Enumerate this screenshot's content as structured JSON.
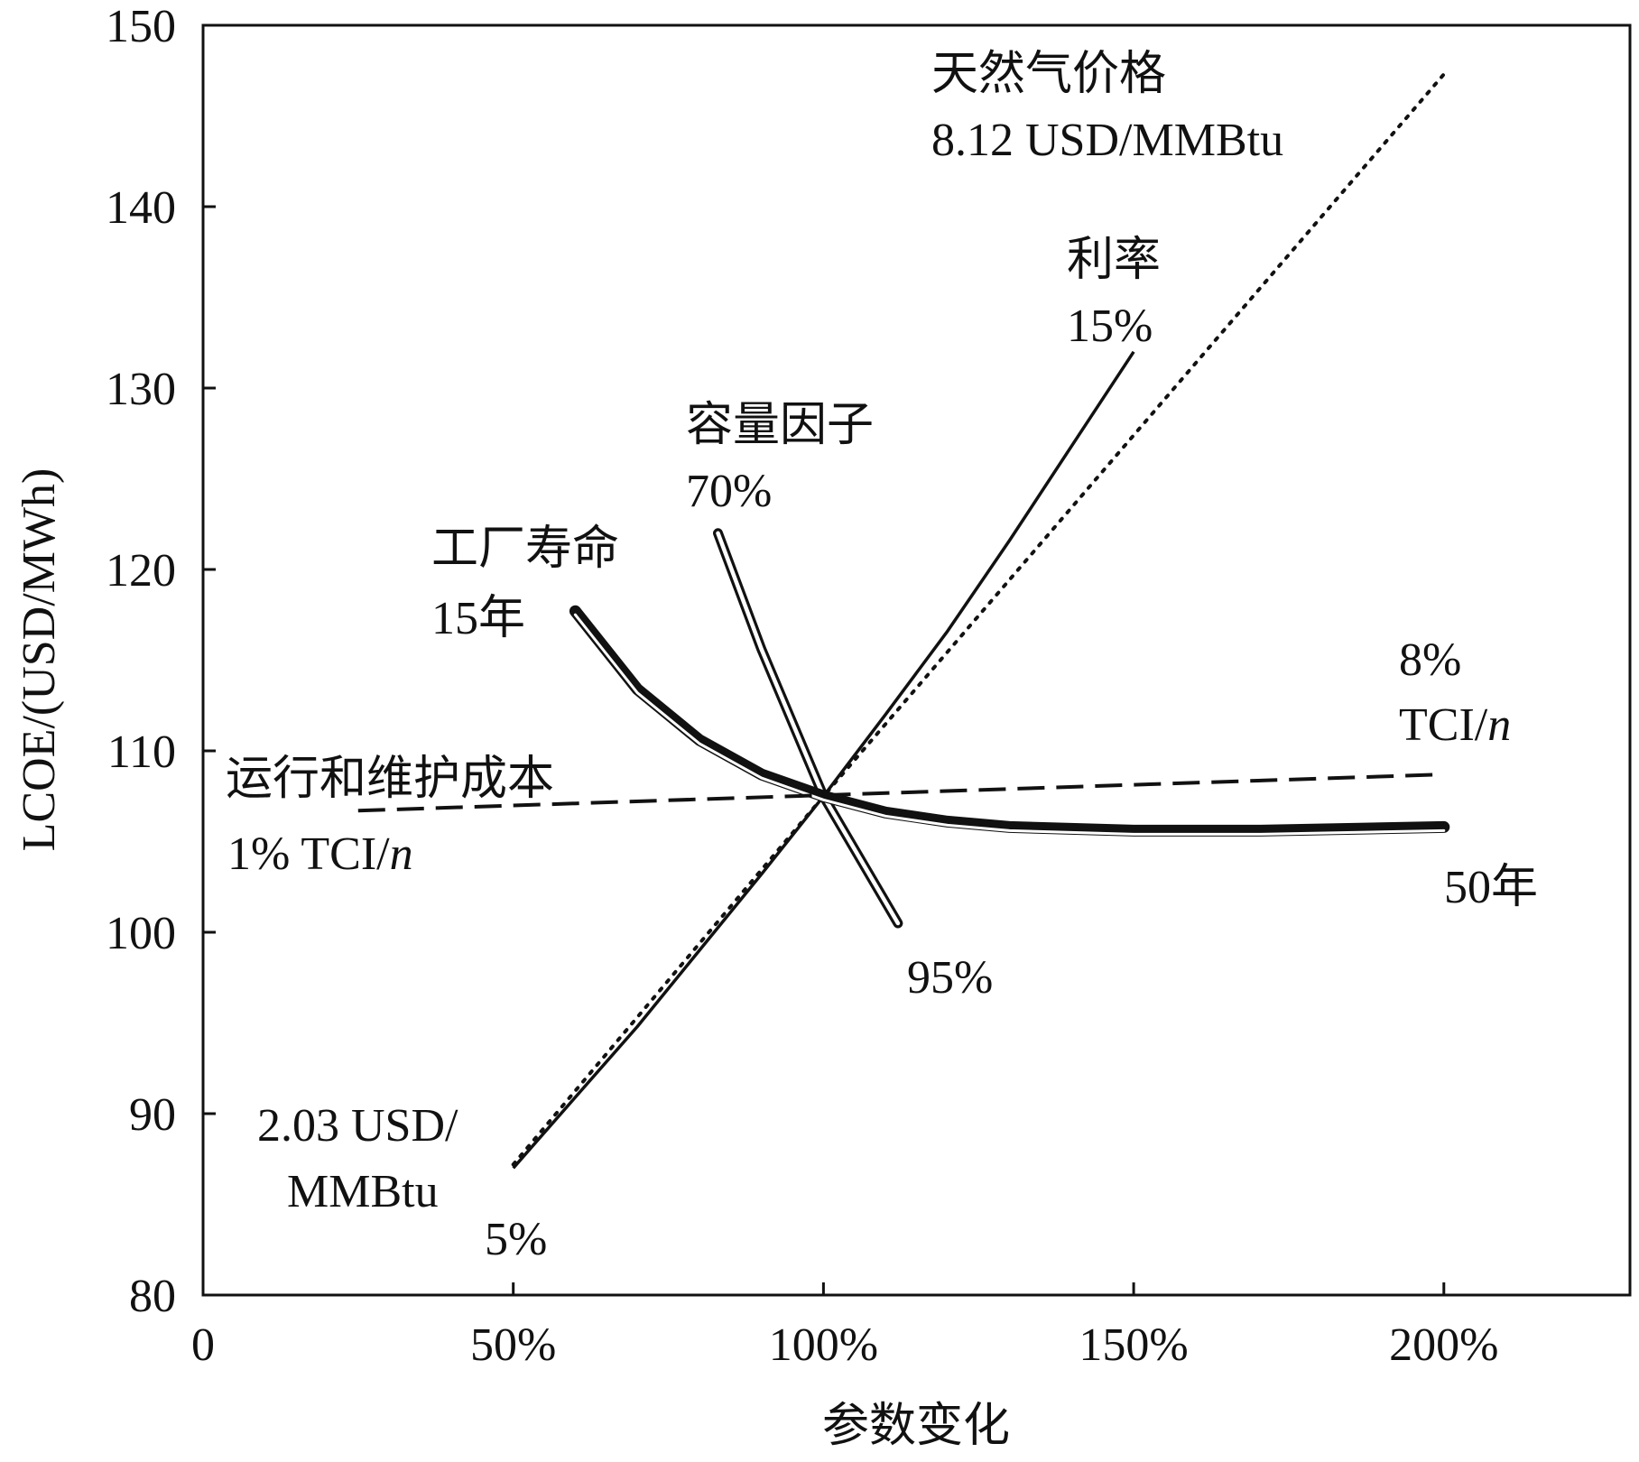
{
  "chart_data": {
    "type": "line",
    "title": "",
    "xlabel": "参数变化",
    "ylabel": "LCOE/(USD/MWh)",
    "xlim": [
      0,
      230
    ],
    "ylim": [
      80,
      150
    ],
    "grid": false,
    "x_ticks": [
      {
        "value": 0,
        "label": "0"
      },
      {
        "value": 50,
        "label": "50%"
      },
      {
        "value": 100,
        "label": "100%"
      },
      {
        "value": 150,
        "label": "150%"
      },
      {
        "value": 200,
        "label": "200%"
      }
    ],
    "y_ticks": [
      {
        "value": 80,
        "label": "80"
      },
      {
        "value": 90,
        "label": "90"
      },
      {
        "value": 100,
        "label": "100"
      },
      {
        "value": 110,
        "label": "110"
      },
      {
        "value": 120,
        "label": "120"
      },
      {
        "value": 130,
        "label": "130"
      },
      {
        "value": 140,
        "label": "140"
      },
      {
        "value": 150,
        "label": "150"
      }
    ],
    "series": [
      {
        "key": "gas_price",
        "style": "dotted",
        "x": [
          50,
          100,
          200
        ],
        "y": [
          87.2,
          107.5,
          147.3
        ]
      },
      {
        "key": "interest_rate",
        "style": "solid",
        "x": [
          50,
          60,
          70,
          80,
          90,
          100,
          110,
          120,
          130,
          140,
          150
        ],
        "y": [
          87.0,
          90.9,
          94.8,
          99.0,
          103.2,
          107.5,
          112.0,
          116.6,
          121.6,
          126.8,
          132.0
        ]
      },
      {
        "key": "capacity_factor",
        "style": "double",
        "x": [
          83,
          90,
          100,
          112
        ],
        "y": [
          122.0,
          115.6,
          107.5,
          100.5
        ]
      },
      {
        "key": "plant_life",
        "style": "thick-double",
        "x": [
          60,
          70,
          80,
          90,
          100,
          110,
          120,
          130,
          150,
          170,
          200
        ],
        "y": [
          117.7,
          113.4,
          110.6,
          108.7,
          107.5,
          106.6,
          106.1,
          105.8,
          105.6,
          105.6,
          105.8
        ]
      },
      {
        "key": "om_cost",
        "style": "dashed",
        "x": [
          25,
          200
        ],
        "y": [
          106.7,
          108.7
        ]
      }
    ],
    "annotations": [
      {
        "key": "gas_title",
        "text": "天然气价格"
      },
      {
        "key": "gas_high",
        "text": "8.12 USD/MMBtu"
      },
      {
        "key": "ir_title",
        "text": "利率"
      },
      {
        "key": "ir_high",
        "text": "15%"
      },
      {
        "key": "cf_title",
        "text": "容量因子"
      },
      {
        "key": "cf_low",
        "text": "70%"
      },
      {
        "key": "life_title",
        "text": "工厂寿命"
      },
      {
        "key": "life_low",
        "text": "15年"
      },
      {
        "key": "om_high_pct",
        "text": "8%"
      },
      {
        "key": "om_high_tci",
        "text": "TCI/"
      },
      {
        "key": "om_n1",
        "text": "n"
      },
      {
        "key": "om_title",
        "text": "运行和维护成本"
      },
      {
        "key": "om_low",
        "text": "1% TCI/"
      },
      {
        "key": "om_n2",
        "text": "n"
      },
      {
        "key": "life_high",
        "text": "50年"
      },
      {
        "key": "cf_high",
        "text": "95%"
      },
      {
        "key": "gas_low_1",
        "text": "2.03 USD/"
      },
      {
        "key": "gas_low_2",
        "text": "MMBtu"
      },
      {
        "key": "ir_low",
        "text": "5%"
      }
    ]
  }
}
